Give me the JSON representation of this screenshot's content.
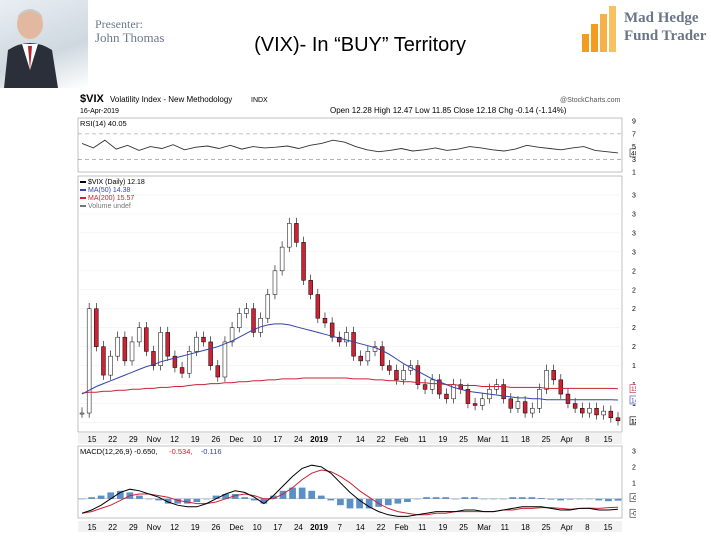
{
  "header": {
    "presenter_label": "Presenter:",
    "presenter_name": "John Thomas",
    "slide_title": "(VIX)- In “BUY” Territory",
    "logo_line1": "Mad Hedge",
    "logo_line2": "Fund Trader",
    "logo_color": "#f39c1e"
  },
  "chart_header": {
    "symbol": "$VIX",
    "name": "Volatility Index - New Methodology",
    "exchange": "INDX",
    "date": "16-Apr-2019",
    "ohlc": "Open 12.28  High 12.47  Low 11.85  Close 12.18  Chg -0.14 (-1.14%)",
    "source": "@StockCharts.com"
  },
  "chart_data": [
    {
      "type": "line",
      "panel": "RSI",
      "legend": "RSI(14) 40.05",
      "ylim": [
        10,
        95
      ],
      "yticks": [
        10,
        30,
        50,
        70,
        90
      ],
      "last_value_label": "40.05",
      "values": [
        55,
        48,
        60,
        46,
        52,
        44,
        50,
        47,
        53,
        45,
        49,
        51,
        47,
        52,
        46,
        50,
        48,
        49,
        51,
        47,
        52,
        55,
        60,
        57,
        50,
        45,
        42,
        44,
        47,
        43,
        45,
        48,
        44,
        46,
        50,
        48,
        45,
        43,
        46,
        52,
        49,
        47,
        45,
        48,
        50,
        44,
        42,
        40
      ]
    },
    {
      "type": "candlestick",
      "panel": "price",
      "legend": [
        {
          "text": "$VIX (Daily) 12.18",
          "color": "#000000"
        },
        {
          "text": "MA(50) 14.38",
          "color": "#3344aa"
        },
        {
          "text": "MA(200) 15.57",
          "color": "#cc2233"
        },
        {
          "text": "Volume undef",
          "color": "#777777"
        }
      ],
      "ylim": [
        11,
        38
      ],
      "yticks": [
        12,
        14,
        16,
        18,
        20,
        22,
        24,
        26,
        28,
        30,
        32,
        34,
        36
      ],
      "ma200_label": "15.57",
      "ma50_label": "14.38",
      "last_label": "12.18",
      "colors": {
        "up": "#ffffff",
        "down": "#cc2233",
        "outline": "#000000",
        "ma50": "#3344aa",
        "ma200": "#cc2233"
      },
      "close": [
        13.0,
        24.0,
        20.0,
        17.0,
        19.0,
        21.0,
        18.5,
        20.5,
        22.0,
        19.5,
        18.0,
        21.5,
        19.0,
        17.8,
        17.2,
        19.5,
        21.0,
        20.5,
        18.0,
        16.8,
        20.5,
        22.0,
        23.5,
        24.0,
        21.5,
        23.0,
        25.5,
        28.0,
        30.5,
        33.0,
        31.0,
        27.0,
        25.5,
        23.0,
        22.5,
        21.0,
        20.5,
        21.5,
        19.0,
        18.5,
        19.5,
        20.0,
        18.0,
        17.5,
        16.5,
        17.5,
        18.0,
        16.0,
        15.5,
        16.5,
        15.0,
        14.5,
        16.0,
        15.5,
        14.0,
        13.8,
        14.5,
        15.5,
        16.0,
        14.5,
        13.5,
        14.2,
        13.0,
        13.5,
        15.5,
        17.5,
        16.5,
        15.0,
        14.0,
        13.5,
        13.0,
        13.5,
        12.8,
        13.2,
        12.5,
        12.18
      ],
      "ma50": [
        15.0,
        15.4,
        15.8,
        16.1,
        16.4,
        16.7,
        17.0,
        17.3,
        17.6,
        17.9,
        18.1,
        18.4,
        18.6,
        18.8,
        19.0,
        19.2,
        19.4,
        19.6,
        19.8,
        20.0,
        20.3,
        20.6,
        21.0,
        21.4,
        21.8,
        22.1,
        22.3,
        22.4,
        22.4,
        22.3,
        22.1,
        21.9,
        21.7,
        21.5,
        21.3,
        21.1,
        20.9,
        20.7,
        20.5,
        20.3,
        20.1,
        19.9,
        19.6,
        19.2,
        18.7,
        18.2,
        17.8,
        17.4,
        17.0,
        16.6,
        16.3,
        16.0,
        15.7,
        15.5,
        15.3,
        15.2,
        15.1,
        15.0,
        14.9,
        14.8,
        14.7,
        14.6,
        14.6,
        14.5,
        14.5,
        14.4,
        14.4,
        14.4,
        14.4,
        14.4,
        14.4,
        14.4,
        14.4,
        14.4,
        14.4,
        14.38
      ],
      "ma200": [
        15.1,
        15.2,
        15.2,
        15.3,
        15.3,
        15.4,
        15.4,
        15.5,
        15.5,
        15.6,
        15.6,
        15.7,
        15.7,
        15.8,
        15.8,
        15.9,
        16.0,
        16.0,
        16.1,
        16.1,
        16.2,
        16.2,
        16.3,
        16.3,
        16.4,
        16.4,
        16.5,
        16.5,
        16.6,
        16.6,
        16.6,
        16.7,
        16.7,
        16.7,
        16.7,
        16.7,
        16.7,
        16.7,
        16.6,
        16.6,
        16.6,
        16.5,
        16.5,
        16.4,
        16.4,
        16.3,
        16.3,
        16.2,
        16.2,
        16.1,
        16.1,
        16.0,
        16.0,
        15.9,
        15.9,
        15.9,
        15.8,
        15.8,
        15.8,
        15.8,
        15.7,
        15.7,
        15.7,
        15.7,
        15.7,
        15.6,
        15.6,
        15.6,
        15.6,
        15.6,
        15.6,
        15.6,
        15.6,
        15.6,
        15.6,
        15.57
      ],
      "x_tick_labels": [
        "15",
        "22",
        "29",
        "Nov",
        "12",
        "19",
        "26",
        "Dec",
        "10",
        "17",
        "24",
        "2019",
        "7",
        "14",
        "22",
        "Feb",
        "11",
        "19",
        "25",
        "Mar",
        "11",
        "18",
        "25",
        "Apr",
        "8",
        "15"
      ]
    },
    {
      "type": "bar+line",
      "panel": "MACD",
      "legend_parts": [
        {
          "text": "MACD(12,26,9) -0.650,",
          "color": "#000000"
        },
        {
          "text": "-0.534,",
          "color": "#cc2233"
        },
        {
          "text": "-0.116",
          "color": "#3344aa"
        }
      ],
      "ylim": [
        -1.2,
        3.3
      ],
      "yticks": [
        1,
        2,
        3
      ],
      "last_labels": [
        "-0.116",
        "-0.650"
      ],
      "macd": [
        -0.9,
        -0.7,
        -0.4,
        0.0,
        0.4,
        0.6,
        0.5,
        0.3,
        0.1,
        -0.2,
        -0.4,
        -0.5,
        -0.5,
        -0.3,
        0.0,
        0.3,
        0.5,
        0.4,
        0.1,
        -0.3,
        0.2,
        0.8,
        1.4,
        1.9,
        2.1,
        2.0,
        1.6,
        1.0,
        0.4,
        -0.1,
        -0.5,
        -0.8,
        -1.0,
        -1.1,
        -1.1,
        -1.0,
        -0.9,
        -0.8,
        -0.8,
        -0.8,
        -0.7,
        -0.7,
        -0.8,
        -0.8,
        -0.7,
        -0.6,
        -0.5,
        -0.5,
        -0.5,
        -0.6,
        -0.7,
        -0.7,
        -0.6,
        -0.6,
        -0.7,
        -0.7,
        -0.65
      ],
      "signal": [
        -0.9,
        -0.8,
        -0.6,
        -0.4,
        -0.1,
        0.2,
        0.3,
        0.3,
        0.2,
        0.1,
        -0.1,
        -0.2,
        -0.3,
        -0.3,
        -0.2,
        0.0,
        0.2,
        0.3,
        0.2,
        0.0,
        0.0,
        0.3,
        0.7,
        1.2,
        1.6,
        1.8,
        1.7,
        1.4,
        1.0,
        0.5,
        0.1,
        -0.3,
        -0.6,
        -0.8,
        -0.9,
        -1.0,
        -1.0,
        -0.9,
        -0.9,
        -0.8,
        -0.8,
        -0.8,
        -0.8,
        -0.8,
        -0.7,
        -0.7,
        -0.6,
        -0.6,
        -0.55,
        -0.55,
        -0.6,
        -0.65,
        -0.6,
        -0.58,
        -0.6,
        -0.55,
        -0.534
      ],
      "x_tick_labels": [
        "15",
        "22",
        "29",
        "Nov",
        "12",
        "19",
        "26",
        "Dec",
        "10",
        "17",
        "24",
        "2019",
        "7",
        "14",
        "22",
        "Feb",
        "11",
        "19",
        "25",
        "Mar",
        "11",
        "18",
        "25",
        "Apr",
        "8",
        "15"
      ]
    }
  ]
}
